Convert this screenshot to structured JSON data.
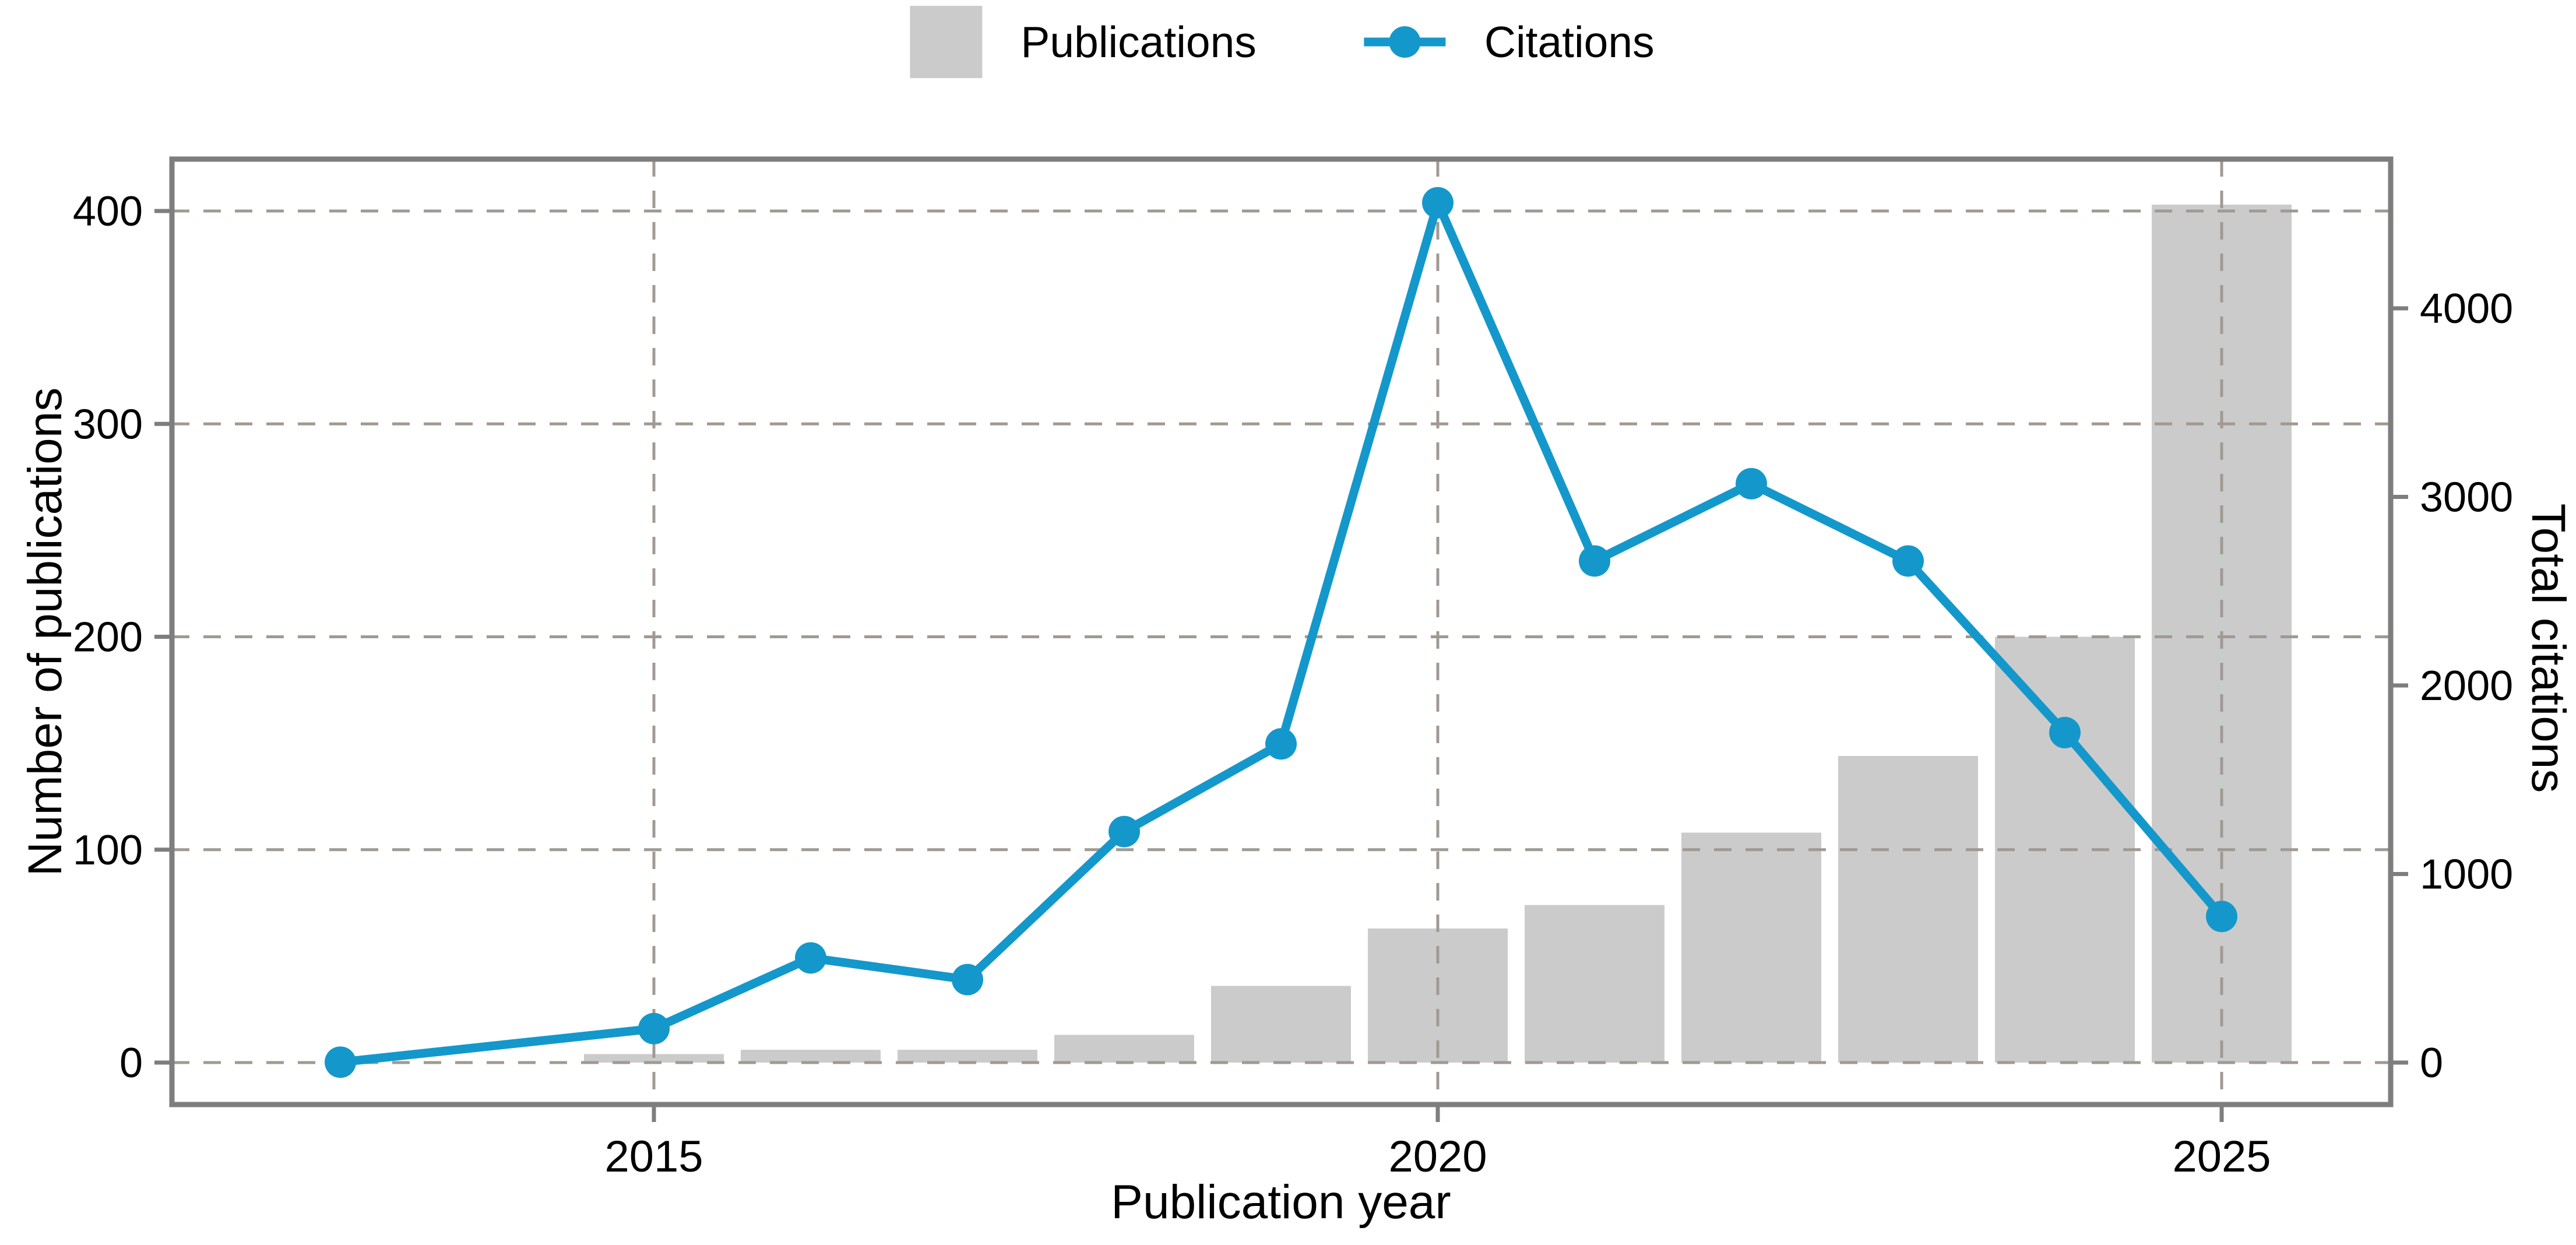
{
  "page": {
    "background": "#FFFFFF"
  },
  "colors": {
    "bar_fill": "#CBCBCB",
    "line_blue": "#1498CB",
    "grid_dash": "#A09A93",
    "frame_gray": "#7E7E7E",
    "text_black": "#000000"
  },
  "legend": {
    "position": "top-center",
    "items": [
      {
        "label": "Publications",
        "marker": "square-swatch",
        "color": "#CBCBCB"
      },
      {
        "label": "Citations",
        "marker": "line-with-dot",
        "color": "#1498CB"
      }
    ]
  },
  "chart_data": {
    "type": "bar+line",
    "x_axis": {
      "label": "Publication year",
      "ticks": [
        "2015",
        "2020",
        "2025"
      ],
      "tick_years": [
        2015,
        2020,
        2025
      ],
      "range": [
        2011.9,
        2026.1
      ]
    },
    "y_axis_left": {
      "label": "Number of publications",
      "ticks": [
        0,
        100,
        200,
        300,
        400
      ],
      "range": [
        0,
        425
      ]
    },
    "y_axis_right": {
      "label": "Total citations",
      "ticks": [
        0,
        1000,
        2000,
        3000,
        4000
      ],
      "range": [
        0,
        4800
      ]
    },
    "grid": {
      "horizontal": "left-axis-ticks",
      "vertical": "x-axis-ticks",
      "style": "dashed",
      "color": "#A09A93"
    },
    "series": [
      {
        "name": "Publications",
        "type": "bar",
        "axis": "left",
        "color": "#CBCBCB",
        "x": [
          2015,
          2016,
          2017,
          2018,
          2019,
          2020,
          2021,
          2022,
          2023,
          2024,
          2025
        ],
        "values": [
          4,
          6,
          6,
          13,
          36,
          63,
          74,
          108,
          144,
          200,
          403
        ]
      },
      {
        "name": "Citations",
        "type": "line",
        "axis": "right",
        "color": "#1498CB",
        "x": [
          2013,
          2015,
          2016,
          2017,
          2018,
          2019,
          2020,
          2021,
          2022,
          2023,
          2024,
          2025
        ],
        "values": [
          2,
          180,
          555,
          440,
          1225,
          1690,
          4560,
          2660,
          3070,
          2660,
          1750,
          775
        ]
      }
    ]
  }
}
